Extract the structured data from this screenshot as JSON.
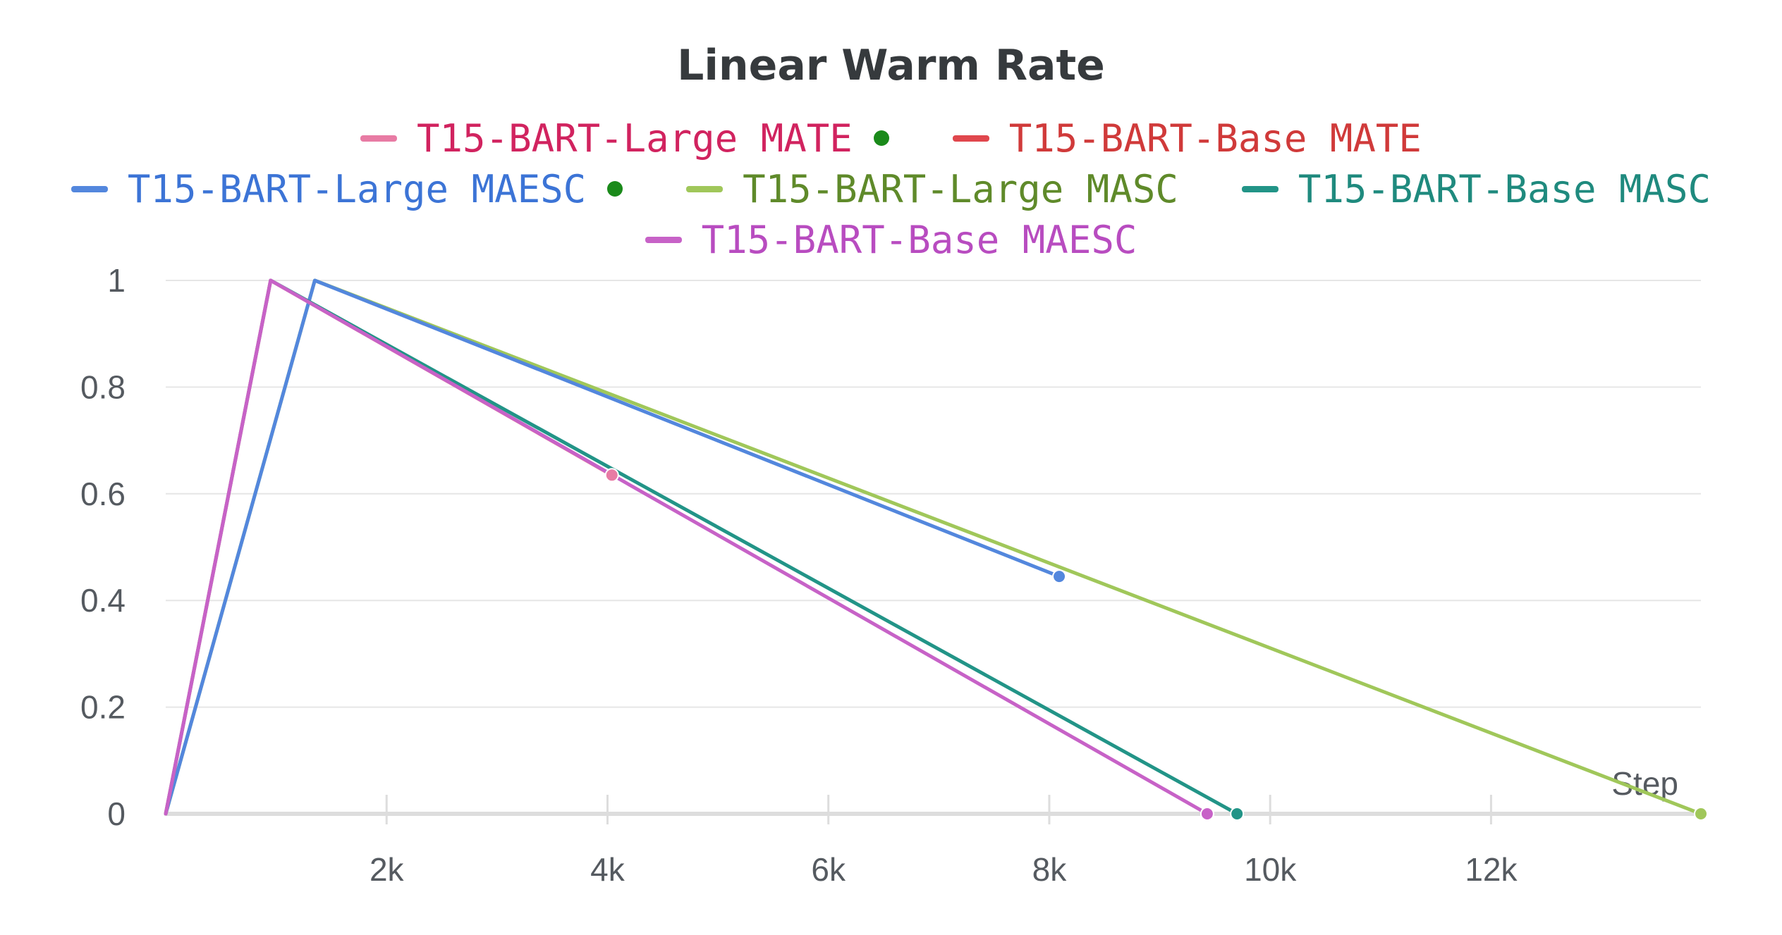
{
  "chart_data": {
    "type": "line",
    "title": "Linear Warm Rate",
    "xlabel": "Step",
    "ylabel": "",
    "xlim": [
      0,
      13900
    ],
    "ylim": [
      0,
      1
    ],
    "x_ticks": [
      2000,
      4000,
      6000,
      8000,
      10000,
      12000
    ],
    "x_tick_labels": [
      "2k",
      "4k",
      "6k",
      "8k",
      "10k",
      "12k"
    ],
    "y_ticks": [
      0,
      0.2,
      0.4,
      0.6,
      0.8,
      1
    ],
    "y_tick_labels": [
      "0",
      "0.2",
      "0.4",
      "0.6",
      "0.8",
      "1"
    ],
    "grid": true,
    "legend_position": "top-center",
    "series": [
      {
        "name": "T15-BART-Large MATE",
        "color": "#e87ba4",
        "text_color": "#d1235f",
        "dot": true,
        "points": [
          [
            0,
            0
          ],
          [
            950,
            1
          ],
          [
            4040,
            0.635
          ]
        ]
      },
      {
        "name": "T15-BART-Base MATE",
        "color": "#e0474d",
        "text_color": "#d03a3a",
        "dot": false,
        "points": [
          [
            0,
            0
          ],
          [
            950,
            1
          ],
          [
            4040,
            0.635
          ]
        ]
      },
      {
        "name": "T15-BART-Large MAESC",
        "color": "#5387dd",
        "text_color": "#3c74d6",
        "dot": true,
        "points": [
          [
            0,
            0
          ],
          [
            1350,
            1
          ],
          [
            8090,
            0.445
          ]
        ]
      },
      {
        "name": "T15-BART-Large MASC",
        "color": "#a0c75a",
        "text_color": "#5f8a2a",
        "dot": false,
        "points": [
          [
            0,
            0
          ],
          [
            1350,
            1
          ],
          [
            13900,
            0
          ]
        ]
      },
      {
        "name": "T15-BART-Base MASC",
        "color": "#229487",
        "text_color": "#1f8a7e",
        "dot": false,
        "points": [
          [
            0,
            0
          ],
          [
            950,
            1
          ],
          [
            9700,
            0
          ]
        ]
      },
      {
        "name": "T15-BART-Base MAESC",
        "color": "#c762c7",
        "text_color": "#b84cc0",
        "dot": false,
        "points": [
          [
            0,
            0
          ],
          [
            950,
            1
          ],
          [
            9430,
            0
          ]
        ]
      }
    ],
    "legend_rows": [
      [
        0,
        1
      ],
      [
        2,
        3,
        4
      ],
      [
        5
      ]
    ],
    "legend_dot_color": "#1a8a1a"
  }
}
